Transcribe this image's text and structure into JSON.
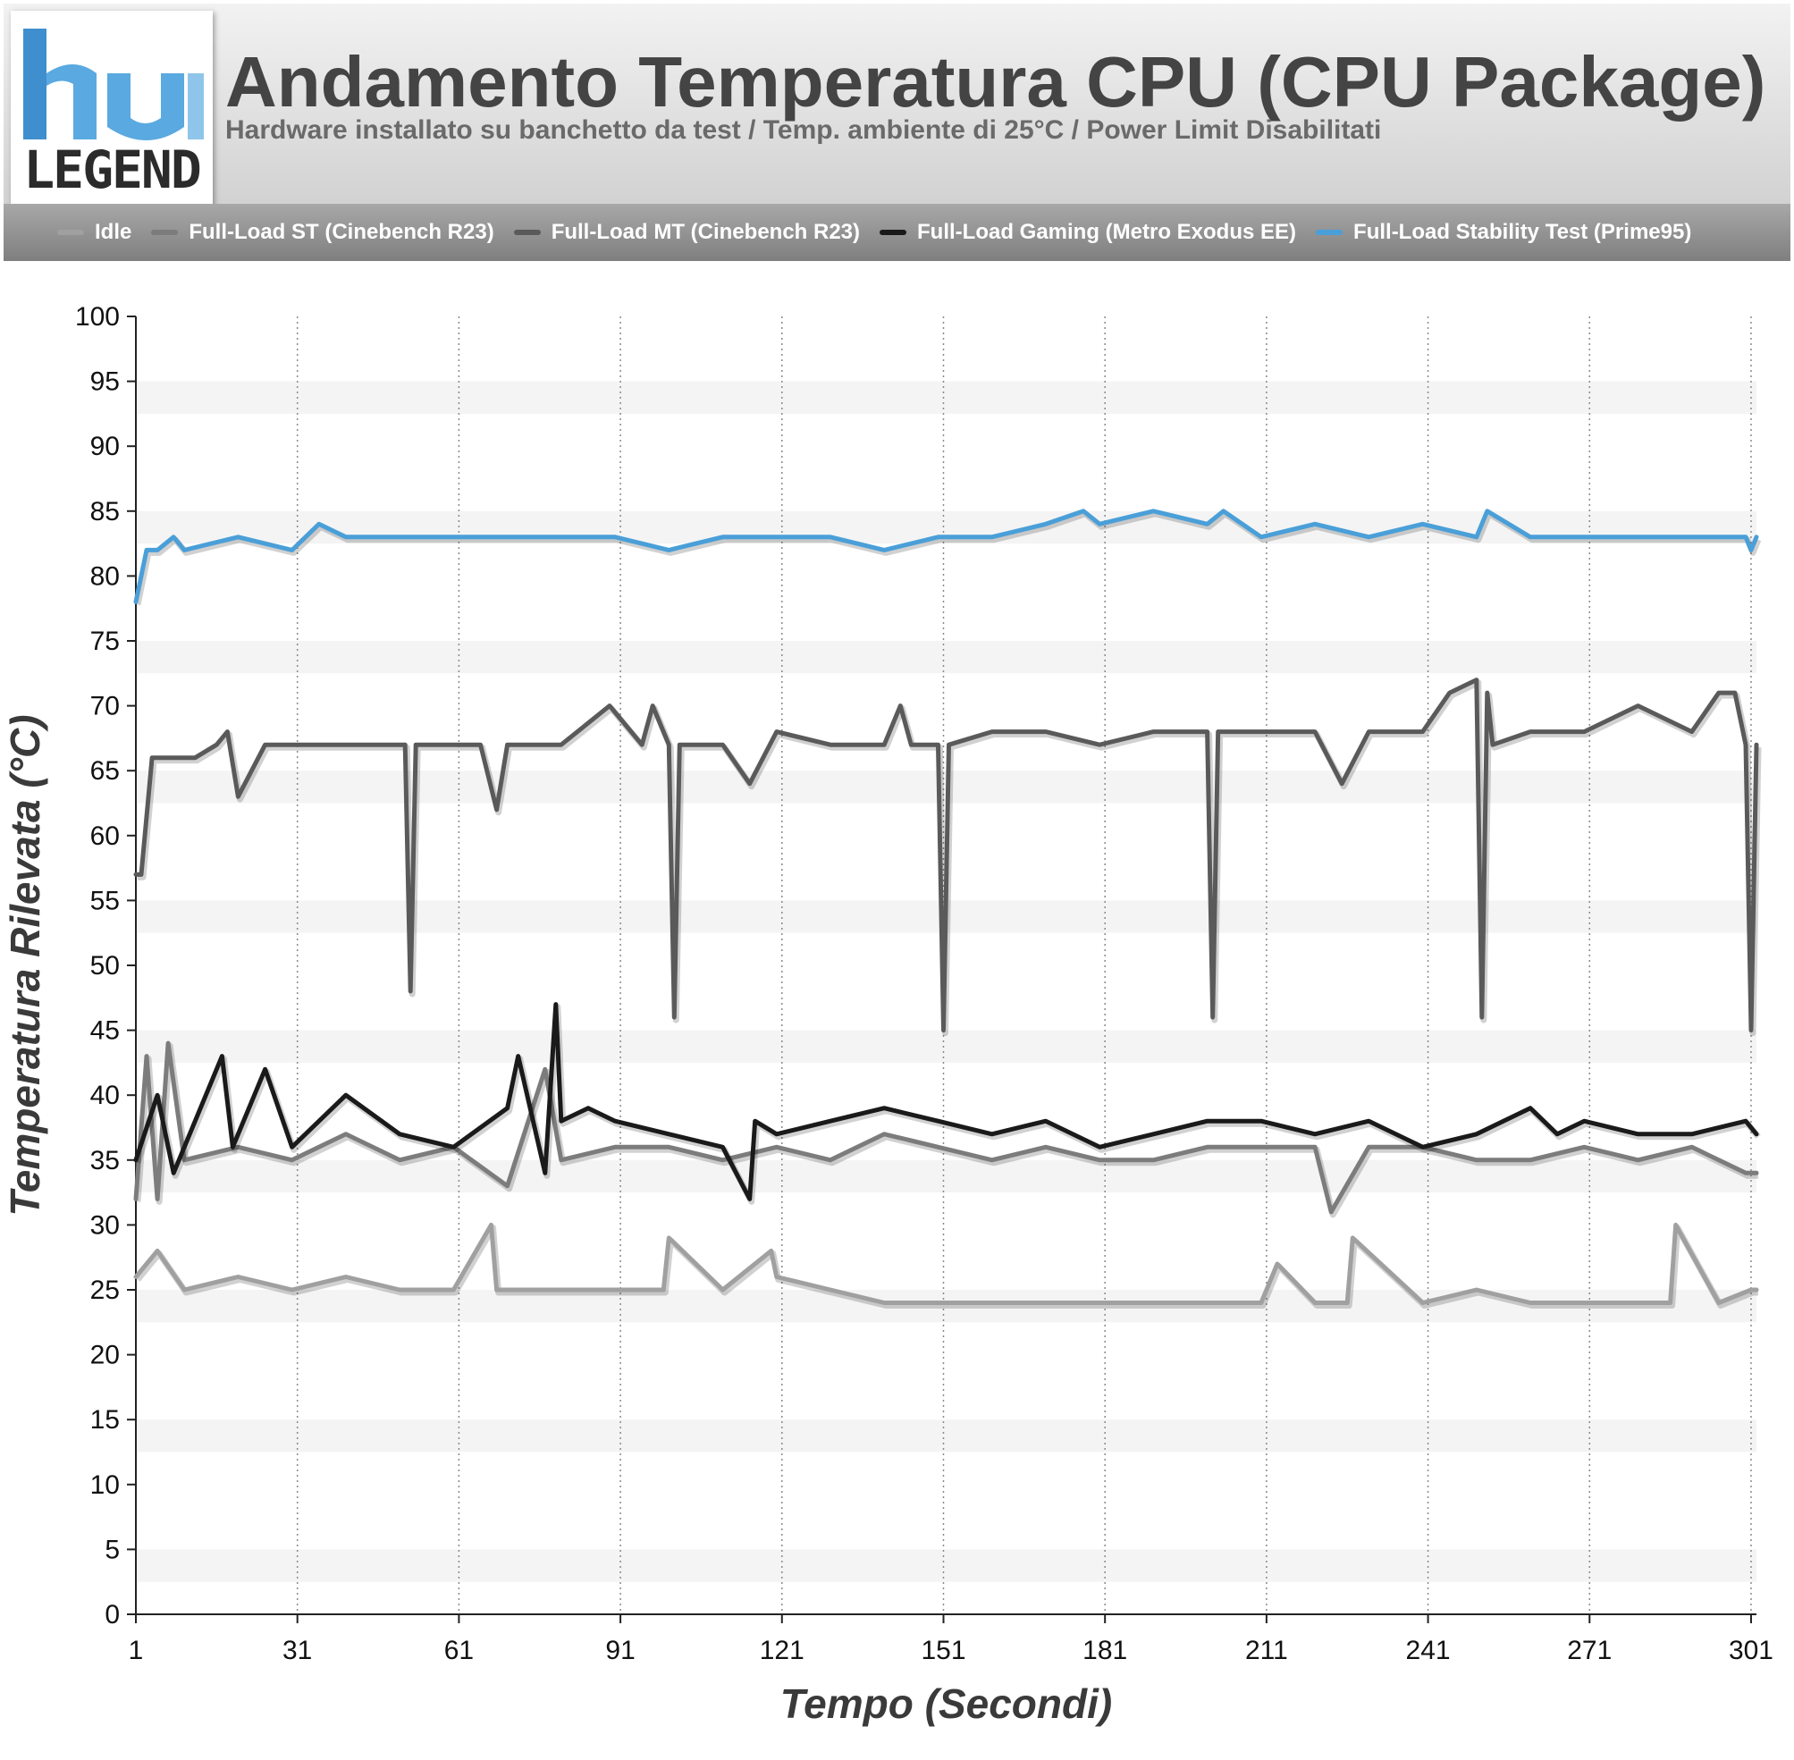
{
  "header": {
    "logo_text": "LEGEND",
    "title": "Andamento Temperatura CPU (CPU Package)",
    "subtitle": "Hardware installato su banchetto da test / Temp. ambiente di 25°C / Power Limit Disabilitati"
  },
  "chart_data": {
    "type": "line",
    "title": "Andamento Temperatura CPU (CPU Package)",
    "subtitle": "Hardware installato su banchetto da test / Temp. ambiente di 25°C / Power Limit Disabilitati",
    "xlabel": "Tempo (Secondi)",
    "ylabel": "Temperatura Rilevata (°C)",
    "xlim": [
      1,
      302
    ],
    "ylim": [
      0,
      100
    ],
    "xticks": [
      1,
      31,
      61,
      91,
      121,
      151,
      181,
      211,
      241,
      271,
      301
    ],
    "yticks": [
      0,
      5,
      10,
      15,
      20,
      25,
      30,
      35,
      40,
      45,
      50,
      55,
      60,
      65,
      70,
      75,
      80,
      85,
      90,
      95,
      100
    ],
    "grid": {
      "x": "dotted vertical",
      "y": "alternating bands"
    },
    "legend_position": "top",
    "series": [
      {
        "name": "Idle",
        "color": "#a0a0a0",
        "x": [
          1,
          5,
          10,
          20,
          30,
          40,
          50,
          60,
          67,
          68,
          80,
          90,
          99,
          100,
          110,
          119,
          120,
          130,
          140,
          150,
          160,
          170,
          180,
          190,
          200,
          210,
          213,
          220,
          226,
          227,
          240,
          250,
          260,
          270,
          280,
          286,
          287,
          295,
          301,
          302
        ],
        "y": [
          26,
          28,
          25,
          26,
          25,
          26,
          25,
          25,
          30,
          25,
          25,
          25,
          25,
          29,
          25,
          28,
          26,
          25,
          24,
          24,
          24,
          24,
          24,
          24,
          24,
          24,
          27,
          24,
          24,
          29,
          24,
          25,
          24,
          24,
          24,
          24,
          30,
          24,
          25,
          25
        ]
      },
      {
        "name": "Full-Load ST (Cinebench R23)",
        "color": "#7c7c7c",
        "x": [
          1,
          3,
          5,
          7,
          10,
          20,
          30,
          40,
          50,
          60,
          70,
          77,
          80,
          90,
          100,
          110,
          120,
          130,
          140,
          150,
          160,
          170,
          180,
          190,
          200,
          210,
          220,
          223,
          230,
          240,
          250,
          260,
          270,
          280,
          290,
          300,
          302
        ],
        "y": [
          32,
          43,
          32,
          44,
          35,
          36,
          35,
          37,
          35,
          36,
          33,
          42,
          35,
          36,
          36,
          35,
          36,
          35,
          37,
          36,
          35,
          36,
          35,
          35,
          36,
          36,
          36,
          31,
          36,
          36,
          35,
          35,
          36,
          35,
          36,
          34,
          34
        ]
      },
      {
        "name": "Full-Load MT (Cinebench R23)",
        "color": "#5a5a5a",
        "x": [
          1,
          2,
          4,
          8,
          12,
          16,
          18,
          20,
          25,
          30,
          35,
          40,
          45,
          50,
          51,
          52,
          53,
          60,
          65,
          68,
          70,
          80,
          89,
          95,
          97,
          100,
          101,
          102,
          110,
          115,
          120,
          130,
          140,
          143,
          145,
          150,
          151,
          152,
          160,
          170,
          180,
          190,
          200,
          201,
          202,
          210,
          220,
          225,
          230,
          240,
          245,
          250,
          251,
          252,
          253,
          260,
          270,
          280,
          290,
          295,
          298,
          300,
          301,
          302
        ],
        "y": [
          57,
          57,
          66,
          66,
          66,
          67,
          68,
          63,
          67,
          67,
          67,
          67,
          67,
          67,
          67,
          48,
          67,
          67,
          67,
          62,
          67,
          67,
          70,
          67,
          70,
          67,
          46,
          67,
          67,
          64,
          68,
          67,
          67,
          70,
          67,
          67,
          45,
          67,
          68,
          68,
          67,
          68,
          68,
          46,
          68,
          68,
          68,
          64,
          68,
          68,
          71,
          72,
          46,
          71,
          67,
          68,
          68,
          70,
          68,
          71,
          71,
          67,
          45,
          67
        ]
      },
      {
        "name": "Full-Load Gaming (Metro Exodus EE)",
        "color": "#1a1a1a",
        "x": [
          1,
          5,
          8,
          17,
          19,
          25,
          30,
          40,
          50,
          60,
          70,
          72,
          77,
          79,
          80,
          85,
          90,
          100,
          110,
          115,
          116,
          120,
          130,
          140,
          150,
          160,
          170,
          180,
          190,
          200,
          210,
          220,
          230,
          240,
          250,
          260,
          265,
          270,
          280,
          290,
          300,
          302
        ],
        "y": [
          35,
          40,
          34,
          43,
          36,
          42,
          36,
          40,
          37,
          36,
          39,
          43,
          34,
          47,
          38,
          39,
          38,
          37,
          36,
          32,
          38,
          37,
          38,
          39,
          38,
          37,
          38,
          36,
          37,
          38,
          38,
          37,
          38,
          36,
          37,
          39,
          37,
          38,
          37,
          37,
          38,
          37
        ]
      },
      {
        "name": "Full-Load Stability Test (Prime95)",
        "color": "#4a9fd8",
        "x": [
          1,
          3,
          5,
          8,
          10,
          20,
          30,
          35,
          40,
          50,
          60,
          70,
          80,
          90,
          100,
          110,
          120,
          130,
          140,
          150,
          160,
          170,
          177,
          180,
          190,
          200,
          203,
          210,
          220,
          230,
          240,
          250,
          252,
          260,
          270,
          280,
          290,
          300,
          301,
          302
        ],
        "y": [
          78,
          82,
          82,
          83,
          82,
          83,
          82,
          84,
          83,
          83,
          83,
          83,
          83,
          83,
          82,
          83,
          83,
          83,
          82,
          83,
          83,
          84,
          85,
          84,
          85,
          84,
          85,
          83,
          84,
          83,
          84,
          83,
          85,
          83,
          83,
          83,
          83,
          83,
          82,
          83
        ]
      }
    ]
  }
}
